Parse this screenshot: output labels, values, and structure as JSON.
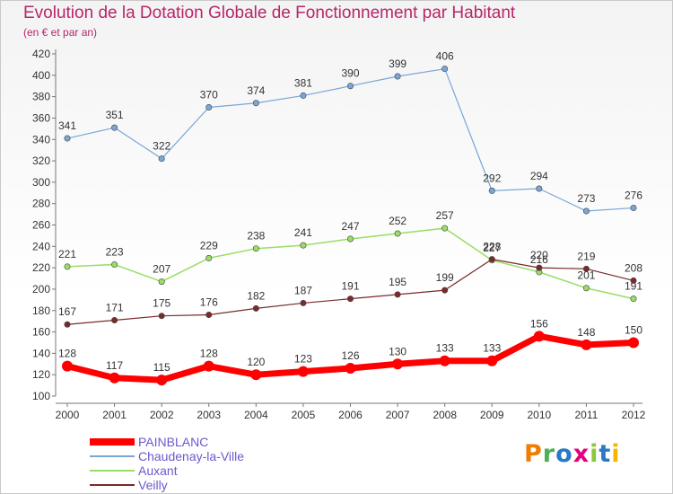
{
  "title": "Evolution de la Dotation Globale de Fonctionnement par Habitant",
  "subtitle": "(en € et par an)",
  "logo": "Proxiti",
  "chart_data": {
    "type": "line",
    "x": [
      "2000",
      "2001",
      "2002",
      "2003",
      "2004",
      "2005",
      "2006",
      "2007",
      "2008",
      "2009",
      "2010",
      "2011",
      "2012"
    ],
    "ylim": [
      100,
      420
    ],
    "yticks": [
      100,
      120,
      140,
      160,
      180,
      200,
      220,
      240,
      260,
      280,
      300,
      320,
      340,
      360,
      380,
      400,
      420
    ],
    "grid": false,
    "legend_placement": "bottom-left",
    "series": [
      {
        "name": "PAINBLANC",
        "color": "#ff0000",
        "values": [
          128,
          117,
          115,
          128,
          120,
          123,
          126,
          130,
          133,
          133,
          156,
          148,
          150
        ]
      },
      {
        "name": "Chaudenay-la-Ville",
        "color": "#7aa6d6",
        "values": [
          341,
          351,
          322,
          370,
          374,
          381,
          390,
          399,
          406,
          292,
          294,
          273,
          276
        ]
      },
      {
        "name": "Auxant",
        "color": "#99dd66",
        "values": [
          221,
          223,
          207,
          229,
          238,
          241,
          247,
          252,
          257,
          227,
          216,
          201,
          191
        ]
      },
      {
        "name": "Veilly",
        "color": "#7a2a2a",
        "values": [
          167,
          171,
          175,
          176,
          182,
          187,
          191,
          195,
          199,
          228,
          220,
          219,
          208
        ]
      }
    ]
  }
}
